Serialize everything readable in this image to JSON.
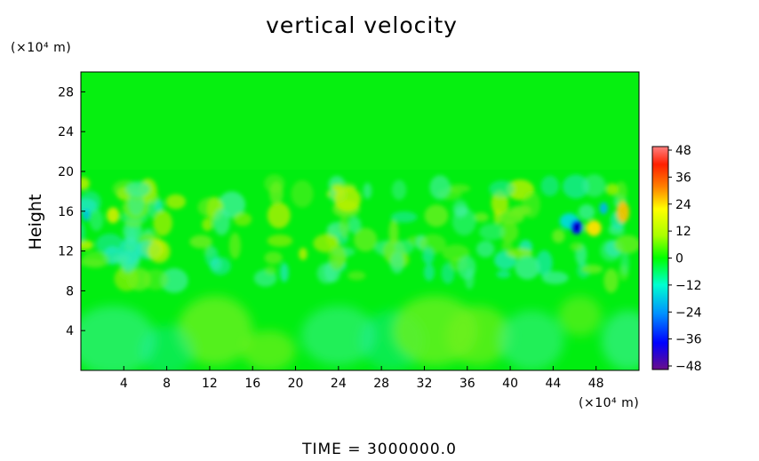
{
  "title": "vertical velocity",
  "footer": "TIME  =  3000000.0",
  "chart_data": {
    "type": "heatmap",
    "title": "vertical velocity",
    "ylabel": "Height",
    "xlabel": "",
    "y_unit": "(×10⁴ m)",
    "x_unit": "(×10⁴ m)",
    "xlim": [
      0,
      52
    ],
    "ylim": [
      0,
      30
    ],
    "xticks": [
      "4",
      "8",
      "12",
      "16",
      "20",
      "24",
      "28",
      "32",
      "36",
      "40",
      "44",
      "48"
    ],
    "yticks": [
      "4",
      "8",
      "12",
      "16",
      "20",
      "24",
      "28"
    ],
    "colorbar": {
      "ticks": [
        "48",
        "36",
        "24",
        "12",
        "0",
        "−12",
        "−24",
        "−36",
        "−48"
      ],
      "range": [
        -48,
        48
      ],
      "colors": [
        "#6a0d8a",
        "#0000ff",
        "#0090ff",
        "#00ffd0",
        "#00ff00",
        "#a8ff00",
        "#ffff00",
        "#ff8000",
        "#ff2000",
        "#ff8080"
      ]
    },
    "features": [
      {
        "label": "strong downdraft",
        "x": 46.5,
        "y": 14.5,
        "value": -40
      },
      {
        "label": "strong updraft",
        "x": 48,
        "y": 14.2,
        "value": 24
      },
      {
        "label": "updraft",
        "x": 50.5,
        "y": 15.8,
        "value": 24
      },
      {
        "label": "updraft",
        "x": 2.2,
        "y": 15.4,
        "value": 16
      },
      {
        "label": "downdraft",
        "x": 0.5,
        "y": 15.5,
        "value": -14
      }
    ],
    "grid": false
  }
}
